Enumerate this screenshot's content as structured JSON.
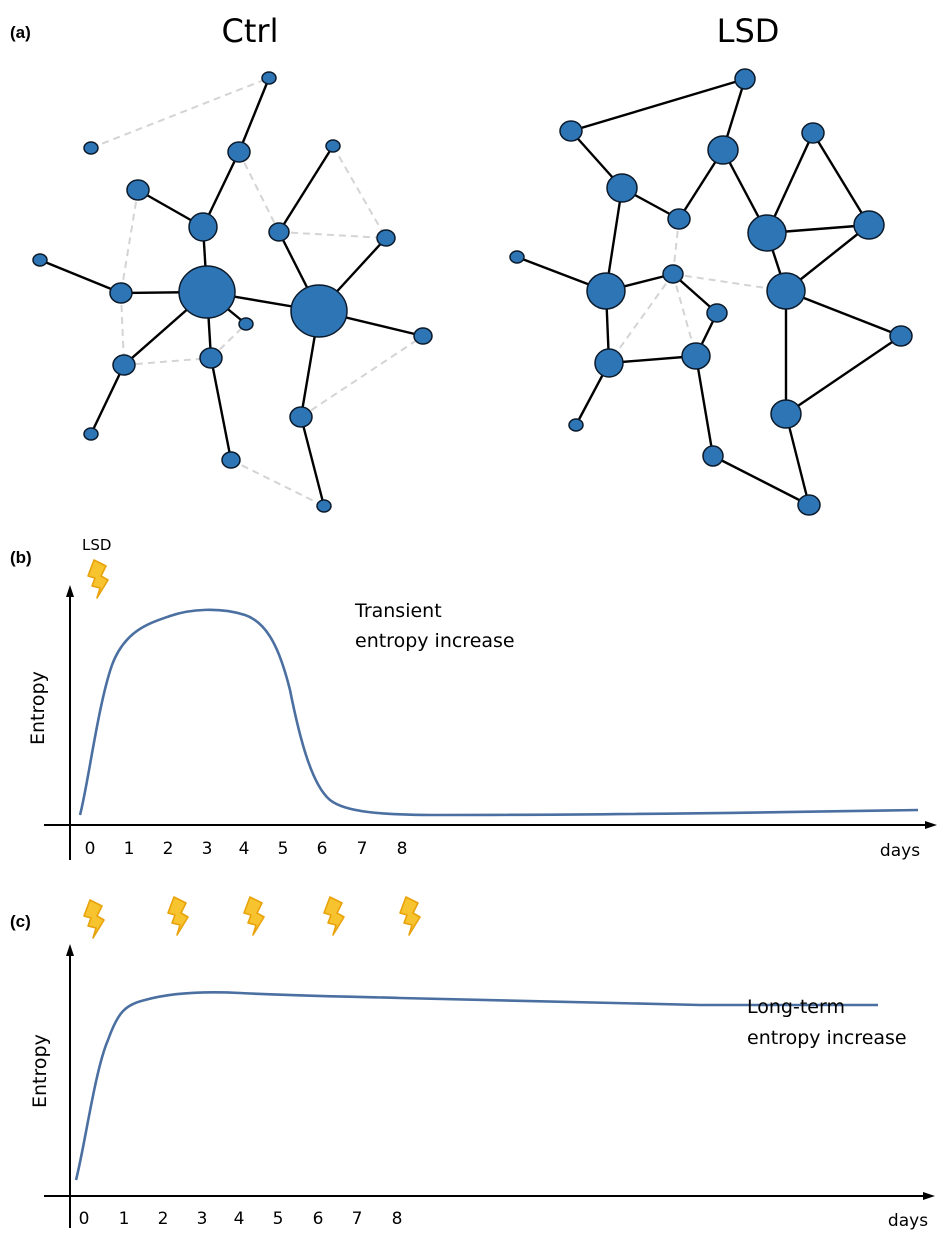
{
  "panel_a": {
    "label": "(a)",
    "ctrl_title": "Ctrl",
    "lsd_title": "LSD"
  },
  "panel_b": {
    "label": "(b)",
    "stimulus_label": "LSD",
    "annotation_line1": "Transient",
    "annotation_line2": "entropy increase",
    "ylabel": "Entropy",
    "xlabel": "days",
    "ticks": [
      "0",
      "1",
      "2",
      "3",
      "4",
      "5",
      "6",
      "7",
      "8"
    ]
  },
  "panel_c": {
    "label": "(c)",
    "annotation_line1": "Long-term",
    "annotation_line2": "entropy increase",
    "ylabel": "Entropy",
    "xlabel": "days",
    "ticks": [
      "0",
      "1",
      "2",
      "3",
      "4",
      "5",
      "6",
      "7",
      "8"
    ]
  },
  "colors": {
    "node_fill": "#2e75b6",
    "solid_edge": "#000000",
    "dashed_edge": "#d4d4d4",
    "curve": "#4a6fa0",
    "bolt": "#f7c42f"
  },
  "icons": [
    "lightning-bolt-icon"
  ]
}
